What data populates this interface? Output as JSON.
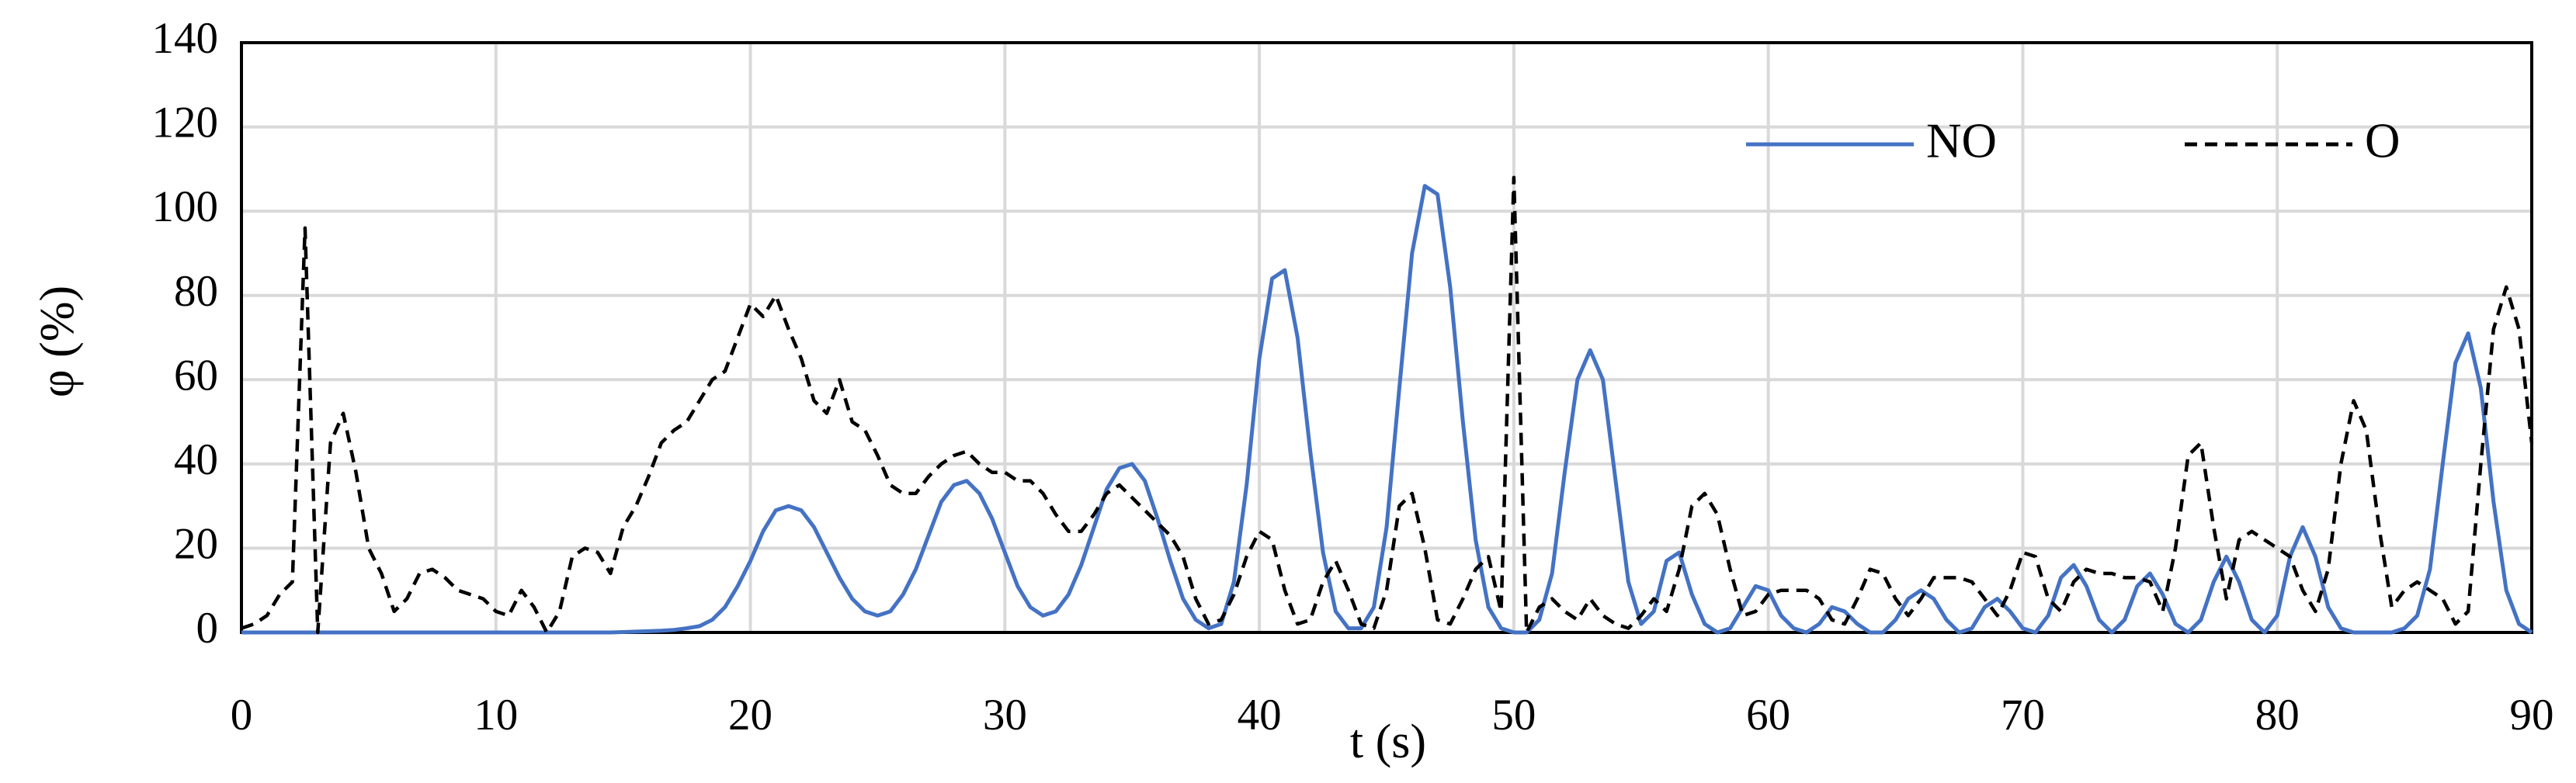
{
  "chart_data": {
    "type": "line",
    "xlabel": "t (s)",
    "ylabel": "φ (%)",
    "xlim": [
      0,
      90
    ],
    "xticks": [
      0,
      10,
      20,
      30,
      40,
      50,
      60,
      70,
      80,
      90
    ],
    "ylim": [
      0,
      140
    ],
    "yticks": [
      0,
      20,
      40,
      60,
      80,
      100,
      120,
      140
    ],
    "grid": true,
    "legend": "upper right",
    "x": [
      0,
      0.5,
      1,
      1.5,
      2,
      2.5,
      3,
      3.5,
      4,
      4.5,
      5,
      5.5,
      6,
      6.5,
      7,
      7.5,
      8,
      8.5,
      9,
      9.5,
      10,
      10.5,
      11,
      11.5,
      12,
      12.5,
      13,
      13.5,
      14,
      14.5,
      15,
      15.5,
      16,
      16.5,
      17,
      17.5,
      18,
      18.5,
      19,
      19.5,
      20,
      20.5,
      21,
      21.5,
      22,
      22.5,
      23,
      23.5,
      24,
      24.5,
      25,
      25.5,
      26,
      26.5,
      27,
      27.5,
      28,
      28.5,
      29,
      29.5,
      30,
      30.5,
      31,
      31.5,
      32,
      32.5,
      33,
      33.5,
      34,
      34.5,
      35,
      35.5,
      36,
      36.5,
      37,
      37.5,
      38,
      38.5,
      39,
      39.5,
      40,
      40.5,
      41,
      41.5,
      42,
      42.5,
      43,
      43.5,
      44,
      44.5,
      45,
      45.5,
      46,
      46.5,
      47,
      47.5,
      48,
      48.5,
      49,
      49.5,
      50,
      50.5,
      51,
      51.5,
      52,
      52.5,
      53,
      53.5,
      54,
      54.5,
      55,
      55.5,
      56,
      56.5,
      57,
      57.5,
      58,
      58.5,
      59,
      59.5,
      60,
      60.5,
      61,
      61.5,
      62,
      62.5,
      63,
      63.5,
      64,
      64.5,
      65,
      65.5,
      66,
      66.5,
      67,
      67.5,
      68,
      68.5,
      69,
      69.5,
      70,
      70.5,
      71,
      71.5,
      72,
      72.5,
      73,
      73.5,
      74,
      74.5,
      75,
      75.5,
      76,
      76.5,
      77,
      77.5,
      78,
      78.5,
      79,
      79.5,
      80,
      80.5,
      81,
      81.5,
      82,
      82.5,
      83,
      83.5,
      84,
      84.5,
      85,
      85.5,
      86,
      86.5,
      87,
      87.5,
      88,
      88.5,
      89,
      89.5,
      90
    ],
    "series": [
      {
        "name": "NO",
        "color": "#4472c4",
        "linestyle": "solid",
        "values": [
          0,
          0,
          0,
          0,
          0,
          0,
          0,
          0,
          0,
          0,
          0,
          0,
          0,
          0,
          0,
          0,
          0,
          0,
          0,
          0,
          0,
          0,
          0,
          0,
          0,
          0,
          0,
          0,
          0,
          0,
          0.1,
          0.2,
          0.3,
          0.4,
          0.6,
          1,
          1.5,
          3,
          6,
          11,
          17,
          24,
          29,
          30,
          29,
          25,
          19,
          13,
          8,
          5,
          4,
          5,
          9,
          15,
          23,
          31,
          35,
          36,
          33,
          27,
          19,
          11,
          6,
          4,
          5,
          9,
          16,
          25,
          34,
          39,
          40,
          36,
          27,
          17,
          8,
          3,
          1,
          2,
          12,
          35,
          65,
          84,
          86,
          70,
          43,
          19,
          5,
          1,
          1,
          6,
          25,
          58,
          90,
          106,
          104,
          82,
          50,
          22,
          6,
          1,
          0,
          0,
          3,
          14,
          38,
          60,
          67,
          60,
          36,
          12,
          2,
          5,
          17,
          19,
          9,
          2,
          0,
          1,
          6,
          11,
          10,
          4,
          1,
          0,
          2,
          6,
          5,
          2,
          0,
          0,
          3,
          8,
          10,
          8,
          3,
          0,
          1,
          6,
          8,
          5,
          1,
          0,
          4,
          13,
          16,
          11,
          3,
          0,
          3,
          11,
          14,
          9,
          2,
          0,
          3,
          12,
          18,
          12,
          3,
          0,
          4,
          18,
          25,
          18,
          6,
          1,
          0,
          0,
          0,
          0,
          1,
          4,
          15,
          40,
          64,
          71,
          58,
          31,
          10,
          2,
          0
        ]
      },
      {
        "name": "O",
        "color": "#000000",
        "linestyle": "dashed",
        "values": [
          1,
          2,
          4,
          9,
          12,
          96,
          0,
          45,
          52,
          38,
          20,
          14,
          5,
          8,
          14,
          15,
          13,
          10,
          9,
          8,
          5,
          4,
          10,
          6,
          0,
          5,
          18,
          20,
          19,
          14,
          25,
          30,
          37,
          45,
          48,
          50,
          55,
          60,
          62,
          70,
          78,
          75,
          80,
          72,
          65,
          55,
          52,
          60,
          50,
          48,
          42,
          35,
          33,
          33,
          37,
          40,
          42,
          43,
          40,
          38,
          38,
          36,
          36,
          33,
          28,
          24,
          24,
          28,
          33,
          35,
          32,
          29,
          26,
          23,
          18,
          8,
          2,
          3,
          9,
          18,
          24,
          22,
          10,
          2,
          3,
          12,
          17,
          10,
          2,
          1,
          10,
          30,
          33,
          20,
          3,
          2,
          8,
          15,
          18,
          5,
          108,
          0,
          6,
          8,
          5,
          3,
          8,
          4,
          2,
          1,
          4,
          8,
          5,
          15,
          30,
          33,
          28,
          15,
          4,
          5,
          9,
          10,
          10,
          10,
          8,
          3,
          2,
          8,
          15,
          14,
          8,
          4,
          8,
          13,
          13,
          13,
          12,
          8,
          4,
          10,
          19,
          18,
          8,
          5,
          12,
          15,
          14,
          14,
          13,
          13,
          12,
          5,
          20,
          42,
          45,
          25,
          8,
          22,
          24,
          22,
          20,
          18,
          10,
          5,
          15,
          40,
          55,
          48,
          25,
          6,
          10,
          12,
          10,
          8,
          2,
          5,
          40,
          72,
          82,
          72,
          45
        ]
      }
    ]
  }
}
